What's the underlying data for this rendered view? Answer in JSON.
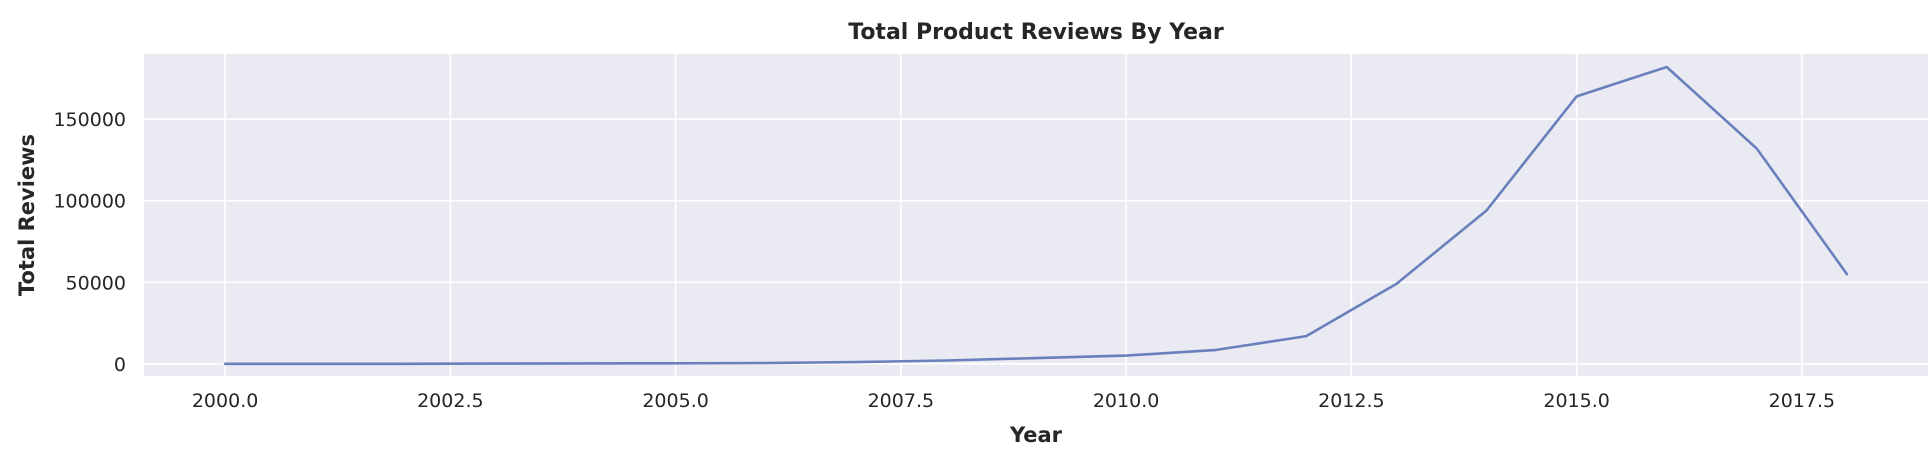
{
  "chart_data": {
    "type": "line",
    "title": "Total Product Reviews By Year",
    "xlabel": "Year",
    "ylabel": "Total Reviews",
    "xlim": [
      1999.1,
      2018.9
    ],
    "ylim": [
      -7500,
      190000
    ],
    "x_ticks": [
      2000.0,
      2002.5,
      2005.0,
      2007.5,
      2010.0,
      2012.5,
      2015.0,
      2017.5
    ],
    "x_tick_labels": [
      "2000.0",
      "2002.5",
      "2005.0",
      "2007.5",
      "2010.0",
      "2012.5",
      "2015.0",
      "2017.5"
    ],
    "y_ticks": [
      0,
      50000,
      100000,
      150000
    ],
    "y_tick_labels": [
      "0",
      "50000",
      "100000",
      "150000"
    ],
    "grid": true,
    "colors": {
      "background": "#eaeaf2",
      "grid": "#ffffff",
      "line": "#6a80bd",
      "text": "#262626"
    },
    "series": [
      {
        "x": [
          2000,
          2001,
          2002,
          2003,
          2004,
          2005,
          2006,
          2007,
          2008,
          2009,
          2010,
          2011,
          2012,
          2013,
          2014,
          2015,
          2016,
          2017,
          2018
        ],
        "values": [
          0,
          0,
          0,
          100,
          200,
          300,
          500,
          1000,
          2000,
          3500,
          5000,
          8500,
          17000,
          49000,
          94000,
          164000,
          182000,
          132000,
          55000
        ]
      }
    ]
  }
}
